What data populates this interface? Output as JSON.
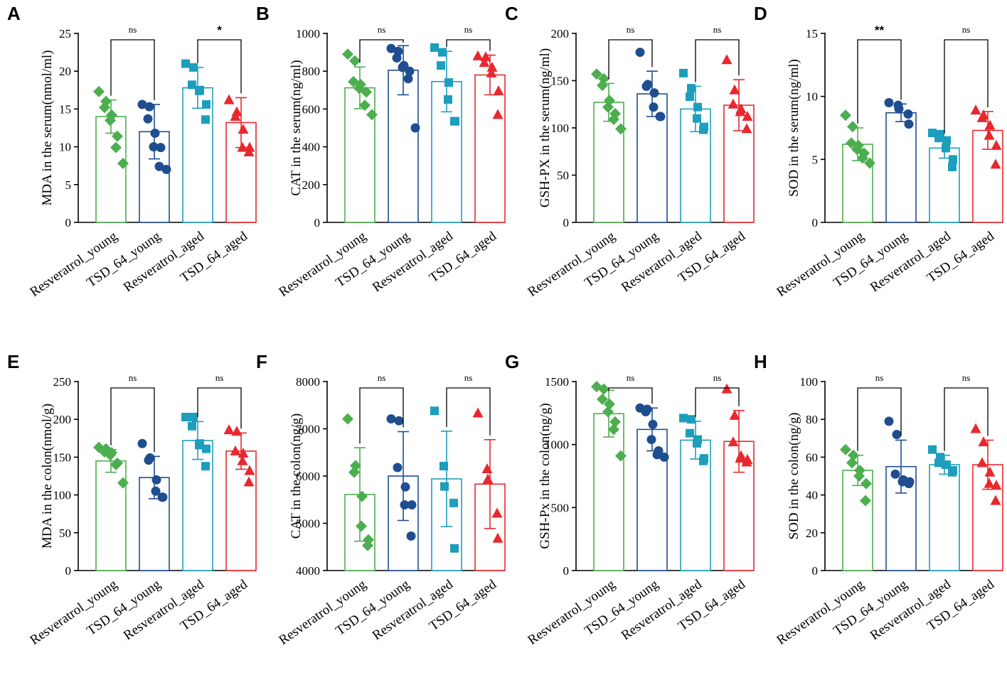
{
  "figure": {
    "categories": [
      "Resveratrol_young",
      "TSD_64_young",
      "Resveratrol_aged",
      "TSD_64_aged"
    ],
    "colors": [
      "#4cae4f",
      "#1f4e8f",
      "#1d9ebd",
      "#e8282e"
    ],
    "markers": [
      "diamond",
      "circle",
      "square",
      "triangle"
    ]
  },
  "chart_data": [
    {
      "type": "bar",
      "panel": "A",
      "ylabel": "MDA in the serum(nmol/ml)",
      "ylim": [
        0,
        25
      ],
      "yticks": [
        0,
        5,
        10,
        15,
        20,
        25
      ],
      "means": [
        14.0,
        12.0,
        17.8,
        13.2
      ],
      "sd": [
        2.2,
        3.6,
        2.7,
        3.3
      ],
      "points": [
        [
          17.3,
          16.0,
          15.2,
          14.2,
          13.5,
          11.4,
          9.9,
          7.8
        ],
        [
          15.6,
          15.3,
          13.7,
          11.8,
          10.0,
          9.9,
          7.4,
          7.0
        ],
        [
          21.0,
          20.5,
          18.2,
          17.5,
          17.4,
          15.6,
          13.6
        ],
        [
          16.2,
          14.6,
          14.0,
          12.3,
          9.9,
          9.9,
          9.3
        ]
      ],
      "comparisons": [
        {
          "from": 0,
          "to": 1,
          "label": "ns"
        },
        {
          "from": 2,
          "to": 3,
          "label": "*"
        }
      ]
    },
    {
      "type": "bar",
      "panel": "B",
      "ylabel": "CAT in the serum(ng/ml)",
      "ylim": [
        0,
        1000
      ],
      "yticks": [
        0,
        200,
        400,
        600,
        800,
        1000
      ],
      "means": [
        712,
        805,
        745,
        780
      ],
      "sd": [
        110,
        130,
        160,
        105
      ],
      "points": [
        [
          890,
          855,
          745,
          730,
          710,
          690,
          620,
          570
        ],
        [
          920,
          905,
          870,
          830,
          820,
          800,
          760,
          500
        ],
        [
          925,
          900,
          830,
          740,
          650,
          535,
          535
        ],
        [
          880,
          875,
          845,
          820,
          790,
          695,
          570
        ]
      ],
      "comparisons": [
        {
          "from": 0,
          "to": 1,
          "label": "ns"
        },
        {
          "from": 2,
          "to": 3,
          "label": "ns"
        }
      ]
    },
    {
      "type": "bar",
      "panel": "C",
      "ylabel": "GSH-PX in the serum(ng/ml)",
      "ylim": [
        0,
        200
      ],
      "yticks": [
        0,
        50,
        100,
        150,
        200
      ],
      "means": [
        127,
        136,
        120,
        124
      ],
      "sd": [
        20,
        24,
        24,
        27
      ],
      "points": [
        [
          157,
          152,
          145,
          129,
          122,
          115,
          109,
          99
        ],
        [
          180,
          146,
          144,
          137,
          122,
          112,
          112
        ],
        [
          158,
          142,
          133,
          122,
          110,
          101,
          98
        ],
        [
          172,
          140,
          125,
          120,
          117,
          112,
          99
        ]
      ],
      "comparisons": [
        {
          "from": 0,
          "to": 1,
          "label": "ns"
        },
        {
          "from": 2,
          "to": 3,
          "label": "ns"
        }
      ]
    },
    {
      "type": "bar",
      "panel": "D",
      "ylabel": "SOD in the serum(ng/ml)",
      "ylim": [
        0,
        15
      ],
      "yticks": [
        0,
        5,
        10,
        15
      ],
      "means": [
        6.2,
        8.7,
        5.9,
        7.3
      ],
      "sd": [
        1.3,
        0.7,
        0.8,
        1.5
      ],
      "points": [
        [
          8.5,
          7.6,
          6.3,
          6.1,
          5.8,
          5.5,
          5.1,
          4.7
        ],
        [
          9.5,
          9.3,
          9.0,
          8.6,
          7.8
        ],
        [
          7.1,
          7.0,
          6.7,
          6.5,
          5.9,
          5.0,
          4.4
        ],
        [
          8.9,
          8.5,
          8.3,
          7.7,
          6.9,
          6.1,
          4.6
        ]
      ],
      "comparisons": [
        {
          "from": 0,
          "to": 1,
          "label": "**"
        },
        {
          "from": 2,
          "to": 3,
          "label": "ns"
        }
      ]
    },
    {
      "type": "bar",
      "panel": "E",
      "ylabel": "MDA in the colon(nmol/g)",
      "ylim": [
        0,
        250
      ],
      "yticks": [
        0,
        50,
        100,
        150,
        200,
        250
      ],
      "means": [
        145,
        123,
        172,
        158
      ],
      "sd": [
        15,
        28,
        25,
        24
      ],
      "points": [
        [
          163,
          161,
          157,
          156,
          153,
          142,
          140,
          116
        ],
        [
          168,
          149,
          146,
          120,
          105,
          97,
          97
        ],
        [
          203,
          203,
          191,
          168,
          166,
          161,
          138
        ],
        [
          186,
          184,
          158,
          155,
          145,
          132,
          117
        ]
      ],
      "comparisons": [
        {
          "from": 0,
          "to": 1,
          "label": "ns"
        },
        {
          "from": 2,
          "to": 3,
          "label": "ns"
        }
      ]
    },
    {
      "type": "bar",
      "panel": "F",
      "ylabel": "CAT in the colon(ng/g)",
      "ylim": [
        4000,
        8000
      ],
      "yticks": [
        4000,
        5000,
        6000,
        7000,
        8000
      ],
      "means": [
        5610,
        6000,
        5940,
        5830
      ],
      "sd": [
        990,
        940,
        1010,
        940
      ],
      "points": [
        [
          7210,
          6220,
          6080,
          5570,
          4940,
          4650,
          4530
        ],
        [
          7210,
          7170,
          6180,
          5770,
          5390,
          5390,
          4730
        ],
        [
          7380,
          6210,
          5780,
          5430,
          4470
        ],
        [
          7330,
          6150,
          5930,
          5210,
          4680
        ]
      ],
      "comparisons": [
        {
          "from": 0,
          "to": 1,
          "label": "ns"
        },
        {
          "from": 2,
          "to": 3,
          "label": "ns"
        }
      ]
    },
    {
      "type": "bar",
      "panel": "G",
      "ylabel": "GSH-Px in the colon(ng/g)",
      "ylim": [
        0,
        1500
      ],
      "yticks": [
        0,
        500,
        1000,
        1500
      ],
      "means": [
        1245,
        1120,
        1035,
        1025
      ],
      "sd": [
        185,
        170,
        150,
        245
      ],
      "points": [
        [
          1460,
          1440,
          1360,
          1320,
          1260,
          1180,
          1120,
          910
        ],
        [
          1290,
          1280,
          1260,
          1160,
          1040,
          950,
          920,
          900
        ],
        [
          1210,
          1200,
          1090,
          1040,
          1010,
          890,
          870
        ],
        [
          1440,
          1230,
          1020,
          910,
          890,
          880,
          860
        ]
      ],
      "comparisons": [
        {
          "from": 0,
          "to": 1,
          "label": "ns"
        },
        {
          "from": 2,
          "to": 3,
          "label": "ns"
        }
      ]
    },
    {
      "type": "bar",
      "panel": "H",
      "ylabel": "SOD in the colon(ng/g)",
      "ylim": [
        0,
        100
      ],
      "yticks": [
        0,
        20,
        40,
        60,
        80,
        100
      ],
      "means": [
        53,
        55,
        56,
        56
      ],
      "sd": [
        8,
        14,
        5,
        13
      ],
      "points": [
        [
          64,
          61,
          57,
          53,
          50,
          46,
          37
        ],
        [
          79,
          72,
          51,
          48,
          47,
          47,
          46
        ],
        [
          64,
          60,
          57,
          56,
          56,
          53,
          52
        ],
        [
          75,
          68,
          57,
          52,
          46,
          45,
          37
        ]
      ],
      "comparisons": [
        {
          "from": 0,
          "to": 1,
          "label": "ns"
        },
        {
          "from": 2,
          "to": 3,
          "label": "ns"
        }
      ]
    }
  ]
}
